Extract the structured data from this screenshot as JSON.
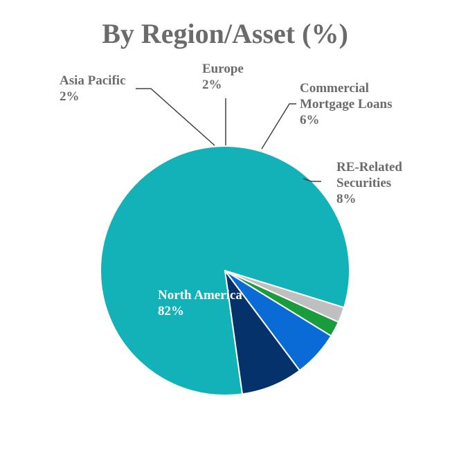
{
  "chart_data": {
    "type": "pie",
    "title": "By Region/Asset (%)",
    "slices": [
      {
        "label": [
          "North America"
        ],
        "value": 82,
        "value_label": "82%",
        "color": "#13b1b8"
      },
      {
        "label": [
          "Asia Pacific"
        ],
        "value": 2,
        "value_label": "2%",
        "color": "#bfbfbf"
      },
      {
        "label": [
          "Europe"
        ],
        "value": 2,
        "value_label": "2%",
        "color": "#1a9b3c"
      },
      {
        "label": [
          "Commercial",
          "Mortgage Loans"
        ],
        "value": 6,
        "value_label": "6%",
        "color": "#0a6bd6"
      },
      {
        "label": [
          "RE-Related",
          "Securities"
        ],
        "value": 8,
        "value_label": "8%",
        "color": "#05326b"
      }
    ]
  }
}
